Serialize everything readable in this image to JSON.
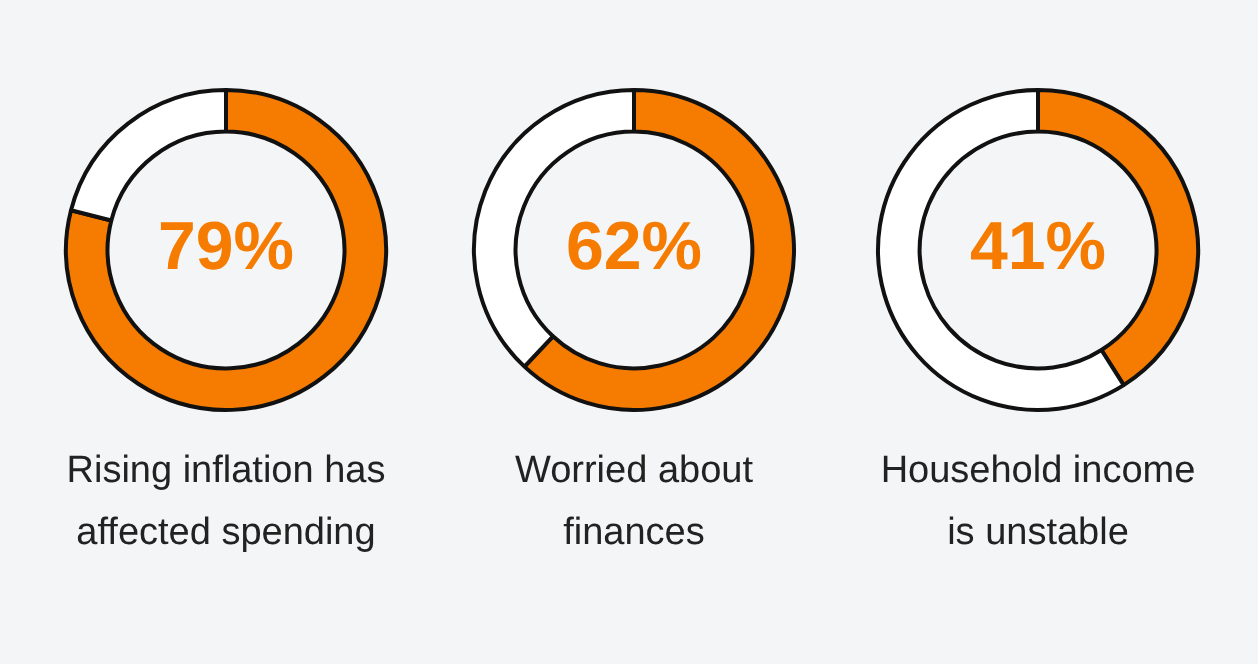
{
  "chart_data": [
    {
      "type": "donut",
      "title": "Rising inflation has affected spending",
      "categories": [
        null,
        null
      ],
      "values": [
        79,
        21
      ],
      "colors": [
        "#f57c00",
        "#ffffff"
      ],
      "value_labels": [
        "79%",
        null
      ],
      "legend": false
    },
    {
      "type": "donut",
      "title": "Worried about finances",
      "categories": [
        null,
        null
      ],
      "values": [
        62,
        38
      ],
      "colors": [
        "#f57c00",
        "#ffffff"
      ],
      "value_labels": [
        "62%",
        null
      ],
      "legend": false
    },
    {
      "type": "donut",
      "title": "Household income is unstable",
      "categories": [
        null,
        null
      ],
      "values": [
        41,
        59
      ],
      "colors": [
        "#f57c00",
        "#ffffff"
      ],
      "value_labels": [
        "41%",
        null
      ],
      "legend": false
    }
  ]
}
